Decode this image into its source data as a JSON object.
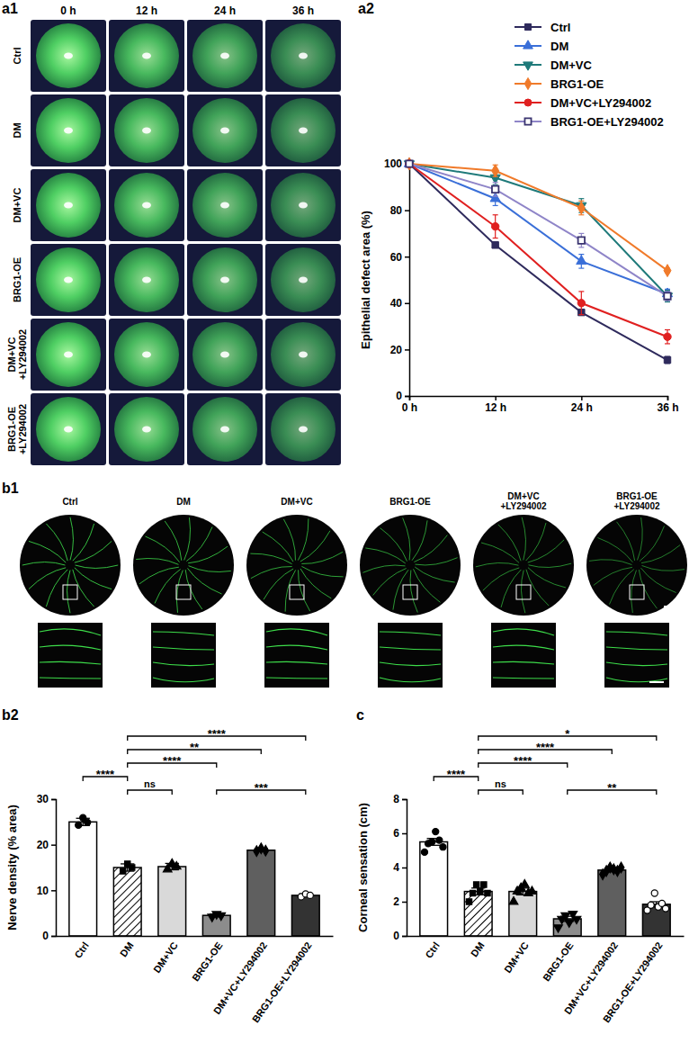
{
  "figure": {
    "a1": {
      "panel": "a1",
      "columns": [
        "0 h",
        "12 h",
        "24 h",
        "36 h"
      ],
      "rows": [
        "Ctrl",
        "DM",
        "DM+VC",
        "BRG1-OE",
        "DM+VC +LY294002",
        "BRG1-OE +LY294002"
      ]
    },
    "b1": {
      "panel": "b1",
      "columns": [
        "Ctrl",
        "DM",
        "DM+VC",
        "BRG1-OE",
        "DM+VC +LY294002",
        "BRG1-OE +LY294002"
      ]
    }
  },
  "chart_data": [
    {
      "panel": "a2",
      "type": "line",
      "y_label": "Epithelial defect area (%)",
      "categories": [
        "0 h",
        "12 h",
        "24 h",
        "36 h"
      ],
      "ylim": [
        0,
        100
      ],
      "yticks": [
        0,
        20,
        40,
        60,
        80,
        100
      ],
      "legend": "top-right",
      "series": [
        {
          "name": "Ctrl",
          "color": "#2e2a5c",
          "marker": "square",
          "values": [
            100,
            65,
            36,
            15.5
          ],
          "errors": [
            0,
            0.5,
            1,
            1.5
          ]
        },
        {
          "name": "DM",
          "color": "#3a6fd8",
          "marker": "triangle",
          "values": [
            100,
            85,
            58,
            44
          ],
          "errors": [
            0,
            3,
            3,
            2
          ]
        },
        {
          "name": "DM+VC",
          "color": "#1f7a7a",
          "marker": "triangle-down",
          "values": [
            100,
            94,
            82,
            43
          ],
          "errors": [
            0,
            3,
            3,
            2.5
          ]
        },
        {
          "name": "BRG1-OE",
          "color": "#f07a2a",
          "marker": "diamond",
          "values": [
            100,
            97,
            81,
            54
          ],
          "errors": [
            0,
            2.5,
            3,
            1
          ]
        },
        {
          "name": "DM+VC+LY294002",
          "color": "#e02020",
          "marker": "circle",
          "values": [
            100,
            73,
            40,
            25.5
          ],
          "errors": [
            0,
            5,
            5,
            3
          ]
        },
        {
          "name": "BRG1-OE+LY294002",
          "color": "#8f85c8",
          "marker": "square-open",
          "values": [
            100,
            89,
            67,
            43
          ],
          "errors": [
            0,
            3,
            3,
            2
          ]
        }
      ]
    },
    {
      "panel": "b2",
      "type": "bar",
      "y_label": "Nerve density (% area)",
      "categories": [
        "Ctrl",
        "DM",
        "DM+VC",
        "BRG1-OE",
        "DM+VC+LY294002",
        "BRG1-OE+LY294002"
      ],
      "values": [
        25,
        15,
        15.2,
        4.5,
        18.8,
        8.9
      ],
      "errors": [
        0.8,
        0.8,
        0.7,
        0.3,
        0.3,
        0.3
      ],
      "points": [
        [
          24.3,
          25.9,
          24.9
        ],
        [
          14.2,
          15.8,
          15.0
        ],
        [
          14.6,
          15.8,
          15.2
        ],
        [
          4.2,
          4.8,
          4.5
        ],
        [
          18.6,
          19.2,
          18.7
        ],
        [
          8.6,
          9.2,
          8.9
        ]
      ],
      "colors": [
        "#ffffff",
        "#ffffff",
        "#d9d9d9",
        "#8c8c8c",
        "#5f5f5f",
        "#333333"
      ],
      "ylim": [
        0,
        30
      ],
      "yticks": [
        0,
        10,
        20,
        30
      ],
      "annotations": [
        {
          "between": [
            "DM",
            "DM+VC"
          ],
          "label": "ns"
        },
        {
          "between": [
            "Ctrl",
            "DM"
          ],
          "label": "****"
        },
        {
          "between": [
            "DM",
            "BRG1-OE"
          ],
          "label": "****"
        },
        {
          "between": [
            "BRG1-OE",
            "BRG1-OE+LY294002"
          ],
          "label": "***"
        },
        {
          "between": [
            "DM",
            "DM+VC+LY294002"
          ],
          "label": "**"
        },
        {
          "between": [
            "DM",
            "BRG1-OE+LY294002"
          ],
          "label": "****"
        }
      ]
    },
    {
      "panel": "c",
      "type": "bar",
      "y_label": "Corneal sensation (cm)",
      "categories": [
        "Ctrl",
        "DM",
        "DM+VC",
        "BRG1-OE",
        "DM+VC+LY294002",
        "BRG1-OE+LY294002"
      ],
      "values": [
        5.5,
        2.6,
        2.6,
        1.0,
        3.85,
        1.85
      ],
      "errors": [
        0.2,
        0.2,
        0.2,
        0.15,
        0.1,
        0.15
      ],
      "points": [
        [
          4.9,
          5.4,
          5.5,
          6.1,
          5.6,
          5.2
        ],
        [
          2.0,
          2.5,
          3.0,
          2.6,
          3.0,
          2.5
        ],
        [
          2.0,
          2.6,
          2.8,
          3.0,
          2.5,
          2.6
        ],
        [
          0.5,
          1.0,
          1.2,
          0.8,
          1.3,
          1.0
        ],
        [
          3.6,
          3.8,
          4.0,
          3.9,
          3.8,
          4.0
        ],
        [
          1.5,
          1.8,
          2.5,
          1.7,
          1.9,
          1.6
        ]
      ],
      "colors": [
        "#ffffff",
        "#ffffff",
        "#d9d9d9",
        "#8c8c8c",
        "#5f5f5f",
        "#333333"
      ],
      "ylim": [
        0,
        8
      ],
      "yticks": [
        0,
        2,
        4,
        6,
        8
      ],
      "annotations": [
        {
          "between": [
            "DM",
            "DM+VC"
          ],
          "label": "ns"
        },
        {
          "between": [
            "Ctrl",
            "DM"
          ],
          "label": "****"
        },
        {
          "between": [
            "DM",
            "BRG1-OE"
          ],
          "label": "****"
        },
        {
          "between": [
            "BRG1-OE",
            "BRG1-OE+LY294002"
          ],
          "label": "**"
        },
        {
          "between": [
            "DM",
            "DM+VC+LY294002"
          ],
          "label": "****"
        },
        {
          "between": [
            "DM",
            "BRG1-OE+LY294002"
          ],
          "label": "*"
        }
      ]
    }
  ]
}
